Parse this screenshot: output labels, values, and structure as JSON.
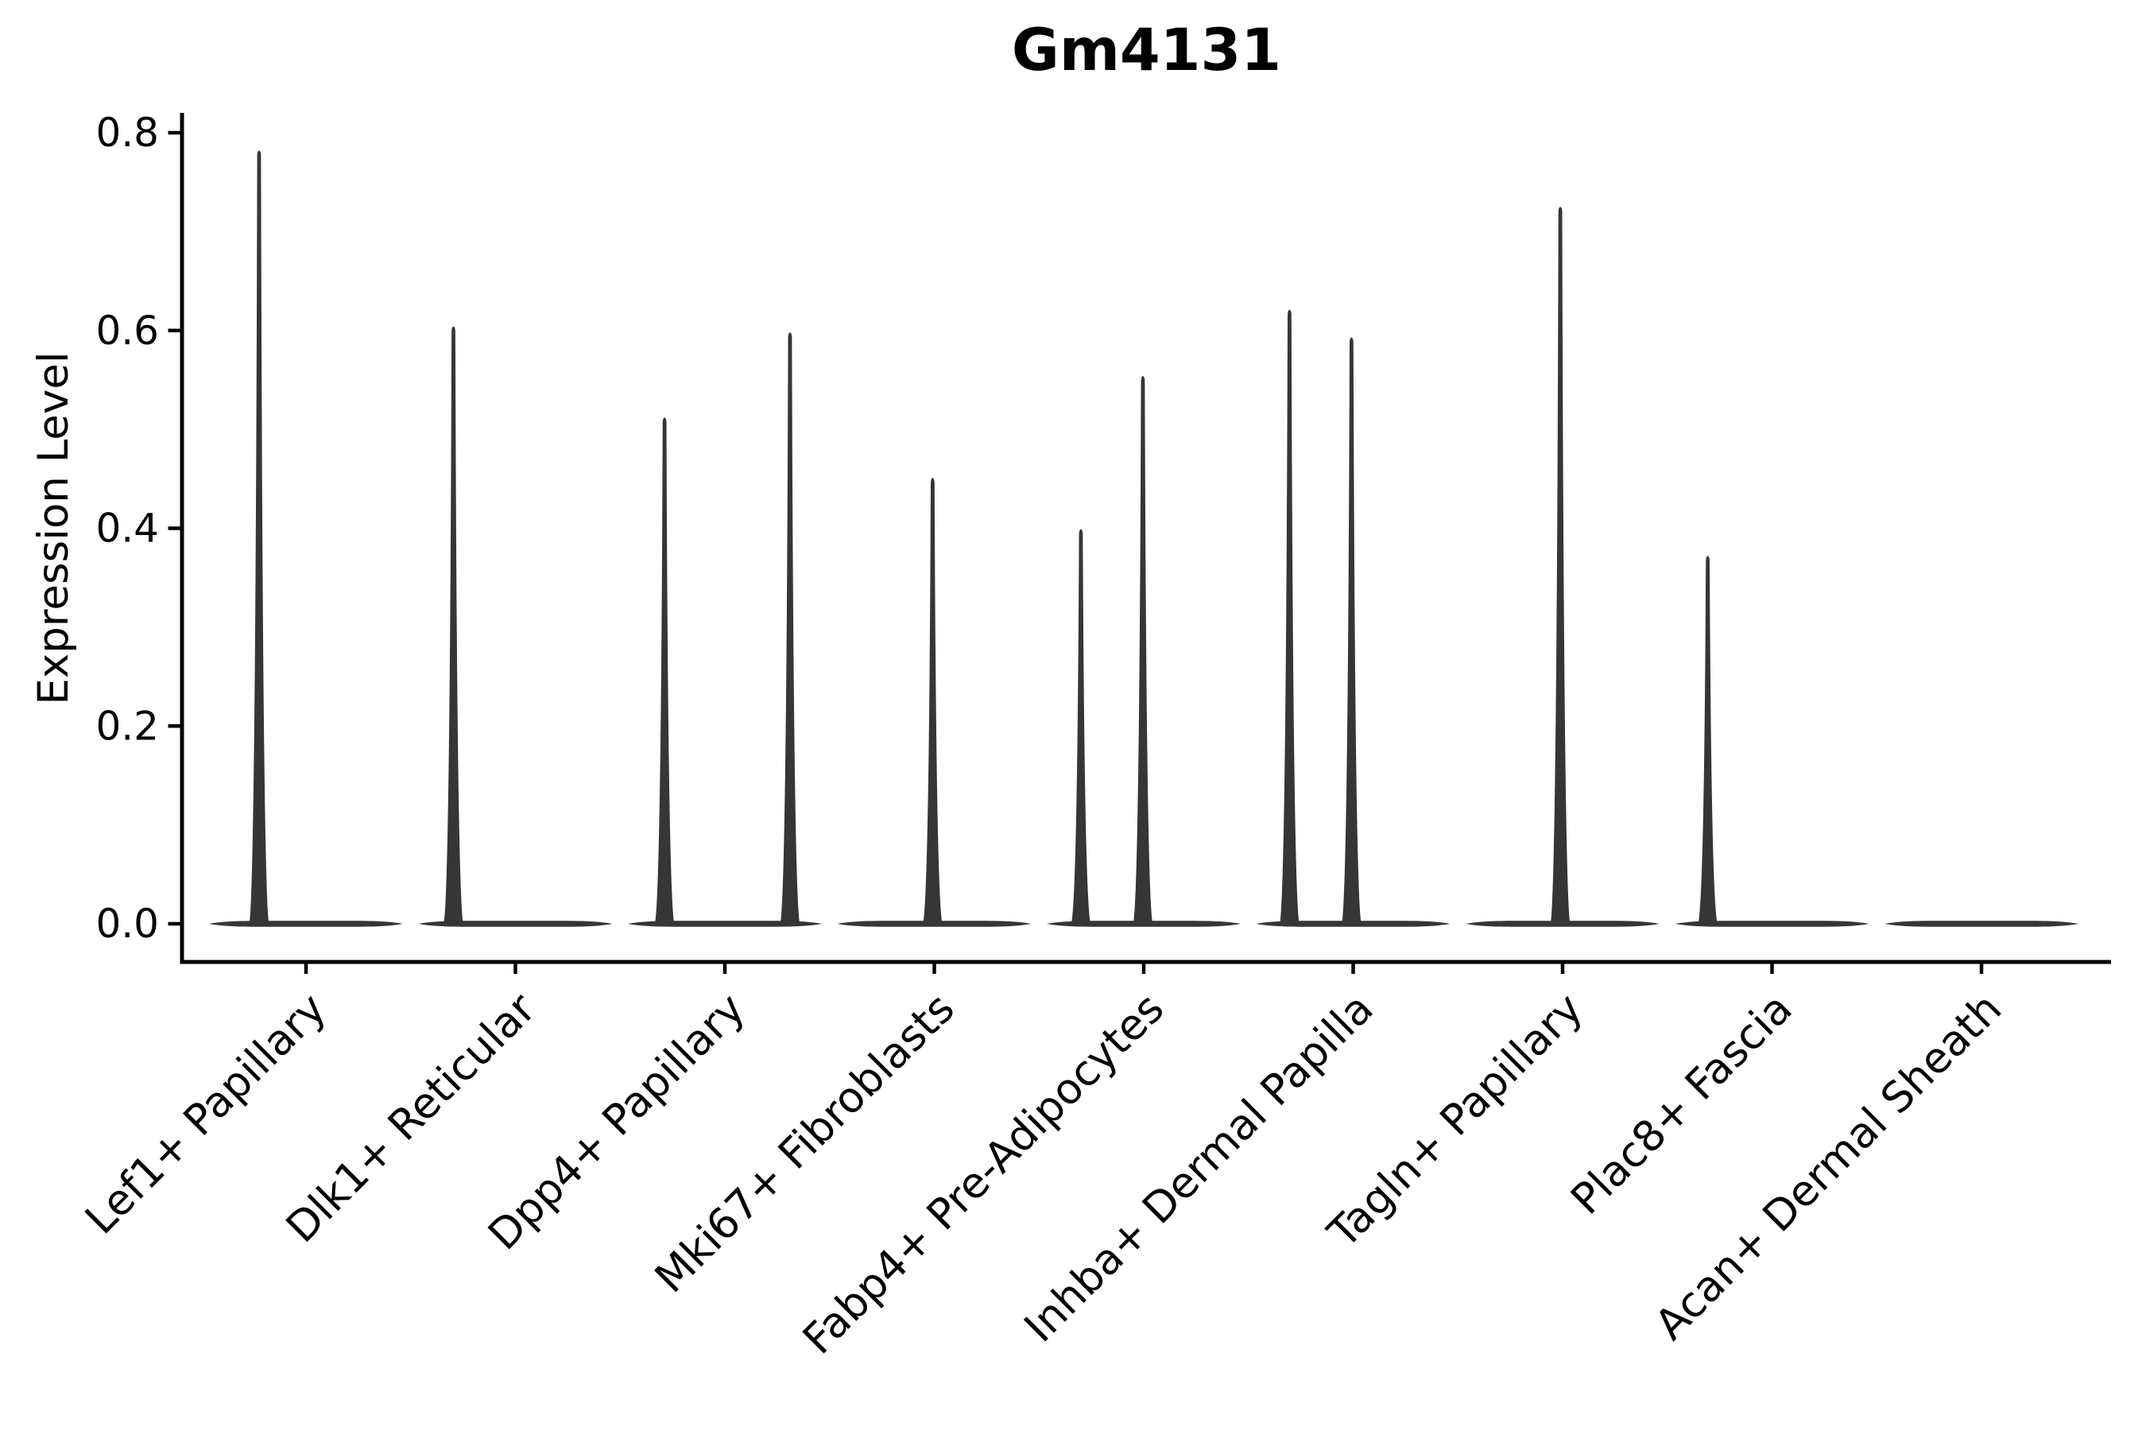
{
  "chart_data": {
    "type": "violin",
    "title": "Gm4131",
    "xlabel": "",
    "ylabel": "Expression Level",
    "ylim": [
      0,
      0.8
    ],
    "yticks": [
      0.0,
      0.2,
      0.4,
      0.6,
      0.8
    ],
    "ytick_labels": [
      "0.0",
      "0.2",
      "0.4",
      "0.6",
      "0.8"
    ],
    "legend": null,
    "layout_hints": {
      "grid": false,
      "spines": [
        "left",
        "bottom"
      ],
      "x_tick_label_rotation_deg": 45,
      "violin_base_width_frac": 0.926
    },
    "colors": {
      "violin": "#363636",
      "axis": "#000000",
      "text": "#000000",
      "background": "#ffffff"
    },
    "categories": [
      {
        "label": "Lef1+ Papillary",
        "spikes": [
          {
            "x_offset_frac": -0.224,
            "max": 0.782
          }
        ]
      },
      {
        "label": "Dlk1+ Reticular",
        "spikes": [
          {
            "x_offset_frac": -0.296,
            "max": 0.604
          }
        ]
      },
      {
        "label": "Dpp4+ Papillary",
        "spikes": [
          {
            "x_offset_frac": -0.288,
            "max": 0.512
          },
          {
            "x_offset_frac": 0.311,
            "max": 0.598
          }
        ]
      },
      {
        "label": "Mki67+ Fibroblasts",
        "spikes": [
          {
            "x_offset_frac": -0.008,
            "max": 0.451
          }
        ]
      },
      {
        "label": "Fabp4+ Pre-Adipocytes",
        "spikes": [
          {
            "x_offset_frac": -0.3,
            "max": 0.399
          },
          {
            "x_offset_frac": -0.004,
            "max": 0.554
          }
        ]
      },
      {
        "label": "Inhba+ Dermal Papilla",
        "spikes": [
          {
            "x_offset_frac": -0.304,
            "max": 0.621
          },
          {
            "x_offset_frac": -0.008,
            "max": 0.593
          }
        ]
      },
      {
        "label": "Tagln+ Papillary",
        "spikes": [
          {
            "x_offset_frac": -0.011,
            "max": 0.725
          }
        ]
      },
      {
        "label": "Plac8+ Fascia",
        "spikes": [
          {
            "x_offset_frac": -0.307,
            "max": 0.372
          }
        ]
      },
      {
        "label": "Acan+ Dermal Sheath",
        "spikes": []
      }
    ]
  }
}
